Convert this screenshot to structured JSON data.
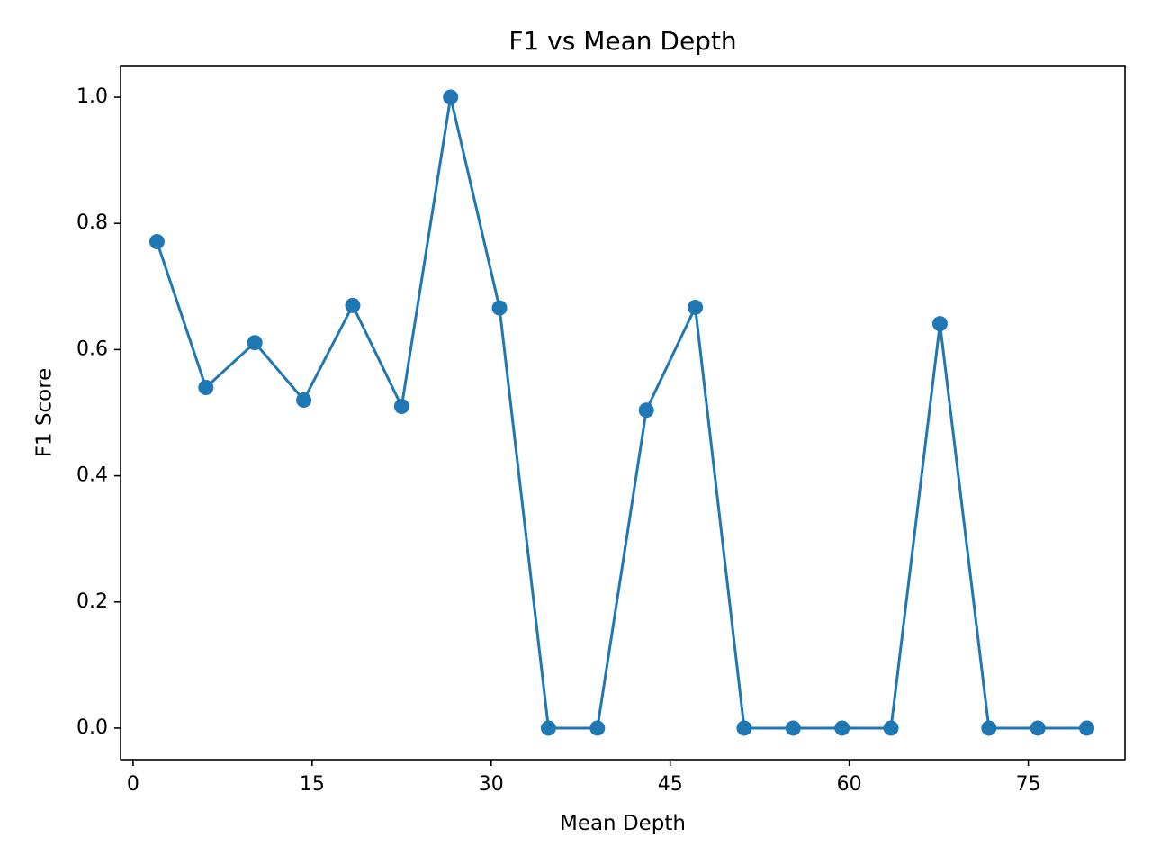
{
  "chart_data": {
    "type": "line",
    "title": "F1 vs Mean Depth",
    "xlabel": "Mean Depth",
    "ylabel": "F1 Score",
    "xlim": [
      -1.05,
      83.1
    ],
    "ylim": [
      -0.05,
      1.05
    ],
    "xticks": [
      0,
      15,
      30,
      45,
      60,
      75
    ],
    "yticks": [
      0.0,
      0.2,
      0.4,
      0.6,
      0.8,
      1.0
    ],
    "xtick_labels": [
      "0",
      "15",
      "30",
      "45",
      "60",
      "75"
    ],
    "ytick_labels": [
      "0.0",
      "0.2",
      "0.4",
      "0.6",
      "0.8",
      "1.0"
    ],
    "grid": false,
    "series": [
      {
        "color": "#1f77b4",
        "marker": "circle",
        "x": [
          2.0,
          6.1,
          10.2,
          14.3,
          18.4,
          22.5,
          26.6,
          30.7,
          34.8,
          38.9,
          43.0,
          47.1,
          51.2,
          55.3,
          59.4,
          63.5,
          67.6,
          71.7,
          75.8,
          79.9
        ],
        "y": [
          0.771,
          0.54,
          0.611,
          0.52,
          0.67,
          0.51,
          1.0,
          0.666,
          0.0,
          0.0,
          0.504,
          0.667,
          0.0,
          0.0,
          0.0,
          0.0,
          0.641,
          0.0,
          0.0,
          0.0
        ]
      }
    ]
  }
}
